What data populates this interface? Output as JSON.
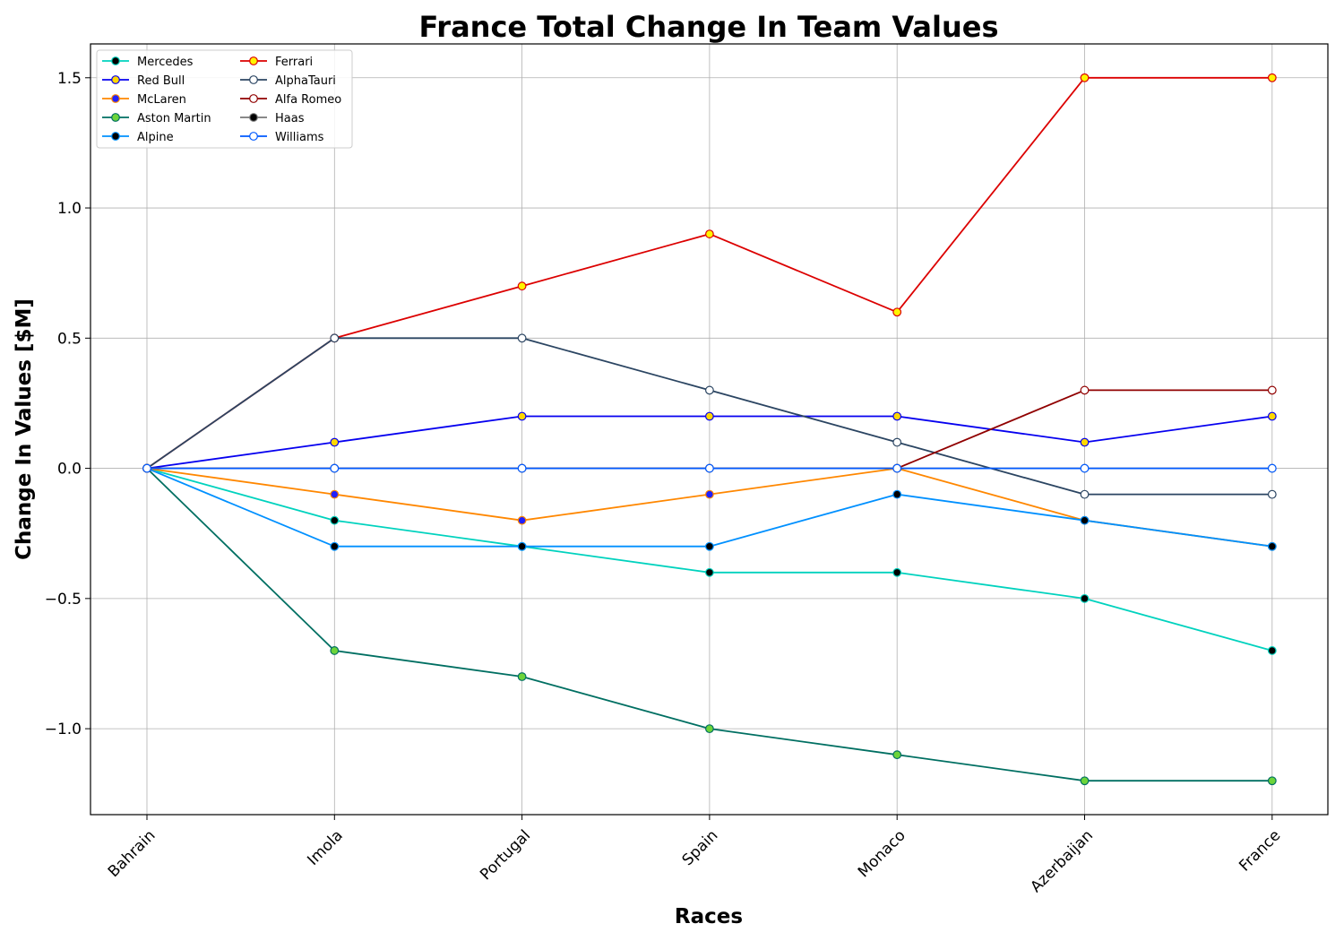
{
  "chart_data": {
    "type": "line",
    "title": "France Total Change In Team Values",
    "xlabel": "Races",
    "ylabel": "Change In Values [$M]",
    "categories": [
      "Bahrain",
      "Imola",
      "Portugal",
      "Spain",
      "Monaco",
      "Azerbaijan",
      "France"
    ],
    "ylim": [
      -1.33,
      1.63
    ],
    "yticks": [
      -1.0,
      -0.5,
      0.0,
      0.5,
      1.0,
      1.5
    ],
    "ytick_labels": [
      "−1.0",
      "−0.5",
      "0.0",
      "0.5",
      "1.0",
      "1.5"
    ],
    "grid": true,
    "legend": {
      "placement": "top-left",
      "columns": 2
    },
    "series": [
      {
        "name": "Mercedes",
        "color": "#00d2be",
        "marker_fill": "#000000",
        "marker_edge": "#00d2be",
        "values": [
          0,
          -0.2,
          -0.3,
          -0.4,
          -0.4,
          -0.5,
          -0.7
        ]
      },
      {
        "name": "Red Bull",
        "color": "#0600ef",
        "marker_fill": "#ffd700",
        "marker_edge": "#0600ef",
        "values": [
          0,
          0.1,
          0.2,
          0.2,
          0.2,
          0.1,
          0.2
        ]
      },
      {
        "name": "McLaren",
        "color": "#ff8700",
        "marker_fill": "#2020ff",
        "marker_edge": "#ff8700",
        "values": [
          0,
          -0.1,
          -0.2,
          -0.1,
          0.0,
          -0.2,
          -0.3
        ]
      },
      {
        "name": "Aston Martin",
        "color": "#006f62",
        "marker_fill": "#6cd43a",
        "marker_edge": "#006f62",
        "values": [
          0,
          -0.7,
          -0.8,
          -1.0,
          -1.1,
          -1.2,
          -1.2
        ]
      },
      {
        "name": "Alpine",
        "color": "#0090ff",
        "marker_fill": "#000000",
        "marker_edge": "#0090ff",
        "values": [
          0,
          -0.3,
          -0.3,
          -0.3,
          -0.1,
          -0.2,
          -0.3
        ]
      },
      {
        "name": "Ferrari",
        "color": "#dc0000",
        "marker_fill": "#fff500",
        "marker_edge": "#dc0000",
        "values": [
          0,
          0.5,
          0.7,
          0.9,
          0.6,
          1.5,
          1.5
        ]
      },
      {
        "name": "AlphaTauri",
        "color": "#2b4562",
        "marker_fill": "#ffffff",
        "marker_edge": "#2b4562",
        "values": [
          0,
          0.5,
          0.5,
          0.3,
          0.1,
          -0.1,
          -0.1
        ]
      },
      {
        "name": "Alfa Romeo",
        "color": "#900000",
        "marker_fill": "#ffffff",
        "marker_edge": "#900000",
        "values": [
          0,
          0.0,
          0.0,
          0.0,
          0.0,
          0.3,
          0.3
        ]
      },
      {
        "name": "Haas",
        "color": "#787878",
        "marker_fill": "#000000",
        "marker_edge": "#787878",
        "values": [
          0,
          0.0,
          0.0,
          0.0,
          0.0,
          0.0,
          0.0
        ]
      },
      {
        "name": "Williams",
        "color": "#005aff",
        "marker_fill": "#ffffff",
        "marker_edge": "#005aff",
        "values": [
          0,
          0.0,
          0.0,
          0.0,
          0.0,
          0.0,
          0.0
        ]
      }
    ]
  }
}
